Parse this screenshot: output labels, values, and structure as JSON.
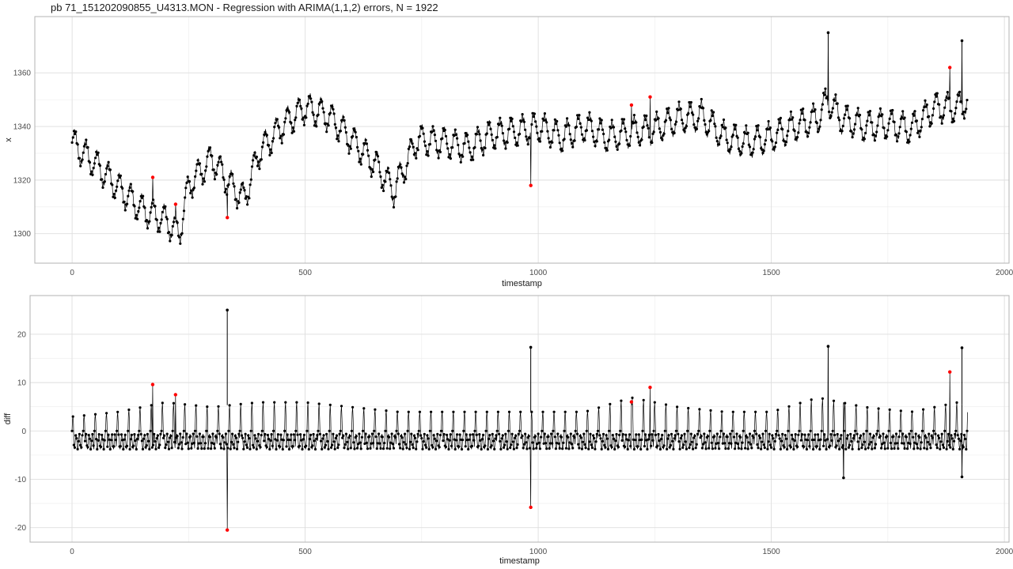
{
  "title": "pb 71_151202090855_U4313.MON - Regression with ARIMA(1,1,2) errors, N = 1922",
  "colors": {
    "series": "#000000",
    "outlier": "#ff0000",
    "panel_border": "#b3b3b3",
    "grid": "#dedede"
  },
  "chart_data": [
    {
      "type": "line",
      "xlabel": "timestamp",
      "ylabel": "x",
      "xlim": [
        -80,
        2010
      ],
      "ylim": [
        1289,
        1381
      ],
      "x_ticks": [
        0,
        500,
        1000,
        1500,
        2000
      ],
      "y_ticks": [
        1300,
        1320,
        1340,
        1360
      ],
      "grid": true,
      "series": [
        {
          "x": [
            0,
            50,
            100,
            150,
            200,
            230,
            250,
            300,
            340,
            370,
            400,
            450,
            500,
            550,
            600,
            650,
            690,
            740,
            800,
            850,
            900,
            950,
            1000,
            1050,
            1100,
            1150,
            1200,
            1250,
            1300,
            1350,
            1400,
            1450,
            1500,
            1550,
            1600,
            1620,
            1650,
            1700,
            1750,
            1800,
            1850,
            1900,
            1922
          ],
          "values": [
            1334,
            1326,
            1317,
            1309,
            1305,
            1300,
            1318,
            1328,
            1318,
            1313,
            1330,
            1340,
            1347,
            1344,
            1335,
            1326,
            1316,
            1335,
            1334,
            1332,
            1337,
            1338,
            1340,
            1336,
            1340,
            1336,
            1338,
            1339,
            1343,
            1344,
            1336,
            1334,
            1336,
            1340,
            1343,
            1350,
            1343,
            1340,
            1341,
            1339,
            1347,
            1347,
            1350
          ],
          "amplitude": 5
        }
      ],
      "outliers": [
        {
          "x": 173,
          "y": 1321
        },
        {
          "x": 222,
          "y": 1311
        },
        {
          "x": 333,
          "y": 1306
        },
        {
          "x": 984,
          "y": 1318
        },
        {
          "x": 1200,
          "y": 1348
        },
        {
          "x": 1240,
          "y": 1351
        },
        {
          "x": 1883,
          "y": 1362
        }
      ],
      "spikes": [
        {
          "x": 1622,
          "y": 1375
        },
        {
          "x": 1909,
          "y": 1372
        }
      ]
    },
    {
      "type": "line",
      "xlabel": "timestamp",
      "ylabel": "diff",
      "xlim": [
        -90,
        2010
      ],
      "ylim": [
        -23,
        28
      ],
      "x_ticks": [
        0,
        500,
        1000,
        1500,
        2000
      ],
      "y_ticks": [
        -20,
        -10,
        0,
        10,
        20
      ],
      "grid": true,
      "series": [
        {
          "x": [
            0,
            100,
            200,
            300,
            400,
            500,
            600,
            700,
            800,
            900,
            1000,
            1100,
            1200,
            1300,
            1400,
            1500,
            1600,
            1700,
            1800,
            1900,
            1922
          ],
          "values": [
            3,
            4,
            6,
            5,
            6,
            6,
            5,
            4,
            4,
            4,
            4,
            4,
            7,
            5,
            4,
            4,
            7,
            5,
            4,
            6,
            5
          ],
          "amplitude_note": "oscillating differences, approx. -3 to +amplitude"
        }
      ],
      "outliers": [
        {
          "x": 173,
          "y": 9.6
        },
        {
          "x": 222,
          "y": 7.5
        },
        {
          "x": 333,
          "y": -20.5
        },
        {
          "x": 984,
          "y": -15.8
        },
        {
          "x": 1200,
          "y": 6
        },
        {
          "x": 1240,
          "y": 9
        },
        {
          "x": 1883,
          "y": 12.2
        }
      ],
      "spikes": [
        {
          "x": 333,
          "y": 25
        },
        {
          "x": 984,
          "y": 17.3
        },
        {
          "x": 1622,
          "y": 17.5
        },
        {
          "x": 1909,
          "y": 17.2
        },
        {
          "x": 1909,
          "y": -9.5
        },
        {
          "x": 1655,
          "y": -9.7
        }
      ]
    }
  ]
}
